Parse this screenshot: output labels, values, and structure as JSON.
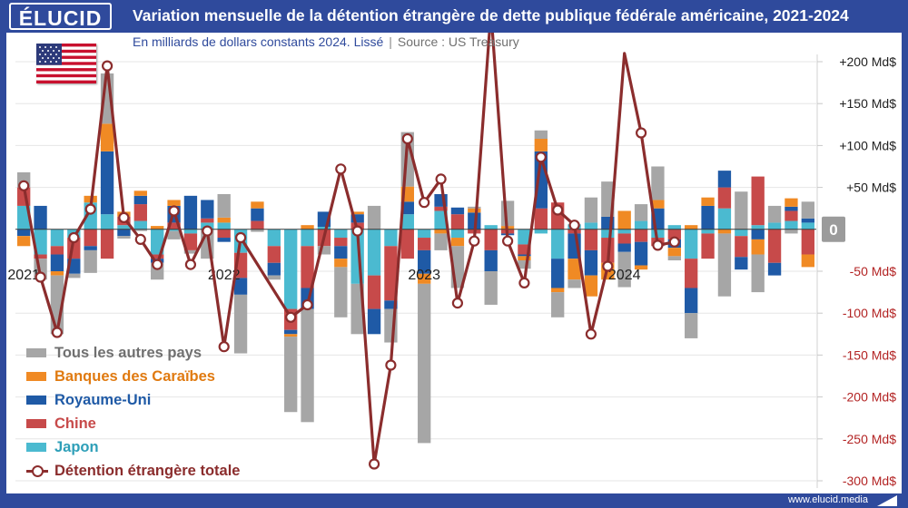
{
  "header": {
    "logo": "ÉLUCID",
    "title": "Variation mensuelle de la détention étrangère de dette publique fédérale américaine, 2021-2024",
    "subtitle": "En milliards de dollars constants 2024. Lissé",
    "subtitle_sep": "|",
    "source": "Source : US Treasury"
  },
  "footer": {
    "website": "www.elucid.media"
  },
  "colors": {
    "others": "#a6a6a6",
    "caribbean": "#f08a24",
    "uk": "#1f5aa6",
    "china": "#c74a4a",
    "japan": "#4bbad0",
    "total": "#8b2d2d",
    "grid": "#e6e6e6",
    "axis_positive": "#222222",
    "axis_negative": "#b32424"
  },
  "chart_data": {
    "type": "bar",
    "stacked": true,
    "x_start": "2021-01",
    "x_labels": [
      "2021",
      "2022",
      "2023",
      "2024"
    ],
    "ylim": [
      -300,
      200
    ],
    "yticks": [
      {
        "value": 200,
        "label": "+200 Md$"
      },
      {
        "value": 150,
        "label": "+150 Md$"
      },
      {
        "value": 100,
        "label": "+100 Md$"
      },
      {
        "value": 50,
        "label": "+50 Md$"
      },
      {
        "value": 0,
        "label": "0"
      },
      {
        "value": -50,
        "label": "-50 Md$"
      },
      {
        "value": -100,
        "label": "-100 Md$"
      },
      {
        "value": -150,
        "label": "-150 Md$"
      },
      {
        "value": -200,
        "label": "-200 Md$"
      },
      {
        "value": -250,
        "label": "-250 Md$"
      },
      {
        "value": -300,
        "label": "-300 Md$"
      }
    ],
    "legend": [
      {
        "key": "others",
        "label": "Tous les autres pays"
      },
      {
        "key": "caribbean",
        "label": "Banques des Caraïbes"
      },
      {
        "key": "uk",
        "label": "Royaume-Uni"
      },
      {
        "key": "china",
        "label": "Chine"
      },
      {
        "key": "japan",
        "label": "Japon"
      },
      {
        "key": "total",
        "label": "Détention étrangère totale"
      }
    ],
    "series": [
      {
        "key": "japan",
        "name": "Japon",
        "values": [
          28,
          -30,
          -20,
          -10,
          32,
          18,
          5,
          10,
          -30,
          -2,
          -5,
          8,
          8,
          -28,
          0,
          -20,
          -95,
          -20,
          3,
          -10,
          -65,
          -55,
          -20,
          18,
          -10,
          22,
          -10,
          0,
          5,
          0,
          -18,
          -5,
          -35,
          6,
          8,
          -10,
          -5,
          10,
          -10,
          5,
          -35,
          -5,
          25,
          -8,
          5,
          8,
          10,
          8
        ]
      },
      {
        "key": "china",
        "name": "Chine",
        "values": [
          22,
          -5,
          -10,
          -25,
          -20,
          -35,
          10,
          20,
          -5,
          8,
          -20,
          5,
          -10,
          -30,
          10,
          -20,
          -25,
          -50,
          -20,
          -10,
          8,
          -40,
          -65,
          -35,
          -15,
          5,
          18,
          -5,
          -25,
          -5,
          -12,
          25,
          32,
          -5,
          -25,
          -30,
          -12,
          -15,
          -10,
          -12,
          -35,
          -30,
          25,
          -25,
          58,
          -40,
          12,
          -30
        ]
      },
      {
        "key": "uk",
        "name": "Royaume-Uni",
        "values": [
          -8,
          28,
          -20,
          -18,
          -5,
          75,
          -8,
          10,
          -5,
          20,
          40,
          22,
          -5,
          -20,
          15,
          -15,
          -5,
          -25,
          18,
          -15,
          10,
          -30,
          -10,
          15,
          -28,
          15,
          8,
          20,
          -25,
          -2,
          -2,
          68,
          -35,
          -30,
          -30,
          15,
          -10,
          -28,
          25,
          -10,
          -30,
          28,
          20,
          -15,
          -12,
          -15,
          5,
          5
        ]
      },
      {
        "key": "caribbean",
        "name": "Banques des Caraïbes",
        "values": [
          -12,
          0,
          -5,
          0,
          8,
          33,
          6,
          6,
          4,
          7,
          0,
          0,
          6,
          0,
          8,
          0,
          -3,
          5,
          0,
          -10,
          3,
          0,
          0,
          18,
          -12,
          -5,
          -10,
          5,
          0,
          4,
          -5,
          15,
          -5,
          -25,
          -25,
          -20,
          22,
          -5,
          10,
          -10,
          5,
          10,
          -5,
          0,
          -18,
          0,
          10,
          -15
        ]
      },
      {
        "key": "others",
        "name": "Tous les autres pays",
        "values": [
          18,
          -25,
          -70,
          -5,
          -27,
          60,
          -3,
          -2,
          -20,
          -10,
          -4,
          -35,
          28,
          -70,
          -3,
          -5,
          -90,
          -135,
          -10,
          -60,
          -60,
          28,
          -40,
          65,
          -190,
          -20,
          -50,
          2,
          -40,
          30,
          -10,
          10,
          -30,
          -10,
          30,
          42,
          -42,
          20,
          40,
          -5,
          -30,
          0,
          -75,
          45,
          -45,
          20,
          -5,
          20
        ]
      },
      {
        "key": "total",
        "name": "Détention étrangère totale",
        "type": "line",
        "values": [
          52,
          -57,
          -123,
          -10,
          24,
          195,
          14,
          -12,
          -42,
          22,
          -42,
          -2,
          -140,
          -10,
          -105,
          -90,
          72,
          -2,
          -280,
          -162,
          108,
          32,
          60,
          -88,
          -14,
          260,
          -14,
          -64,
          86,
          23,
          5,
          -125,
          -44,
          210,
          115,
          -19,
          -15
        ]
      }
    ],
    "total_x": [
      0,
      1,
      2,
      3,
      4,
      5,
      6,
      7,
      8,
      9,
      10,
      11,
      12,
      13,
      16,
      17,
      19,
      20,
      21,
      22,
      23,
      24,
      25,
      26,
      27,
      28,
      29,
      30,
      31,
      32,
      33,
      34,
      35,
      36,
      37,
      38,
      39
    ]
  }
}
